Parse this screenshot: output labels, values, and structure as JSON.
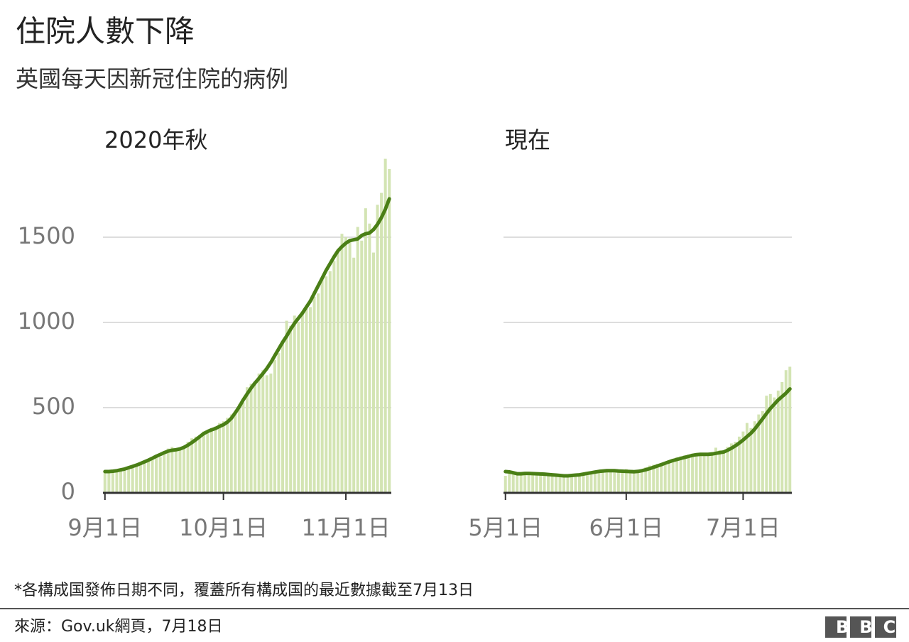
{
  "title": "住院人數下降",
  "subtitle": "英國每天因新冠住院的病例",
  "footnote": "*各構成国發佈日期不同，覆蓋所有構成国的最近數據截至7月13日",
  "source": "來源：Gov.uk網頁，7月18日",
  "logo": "BBC",
  "chart_data": [
    {
      "type": "bar",
      "title": "2020年秋",
      "categories": [
        "9月1日",
        null,
        null,
        null,
        null,
        null,
        null,
        null,
        null,
        null,
        null,
        null,
        null,
        null,
        null,
        null,
        null,
        null,
        null,
        null,
        null,
        null,
        null,
        null,
        null,
        null,
        null,
        null,
        null,
        null,
        "10月1日",
        null,
        null,
        null,
        null,
        null,
        null,
        null,
        null,
        null,
        null,
        null,
        null,
        null,
        null,
        null,
        null,
        null,
        null,
        null,
        null,
        null,
        null,
        null,
        null,
        null,
        null,
        null,
        null,
        null,
        null,
        "11月1日",
        null,
        null,
        null,
        null,
        null,
        null,
        null,
        null,
        null,
        null,
        null
      ],
      "series": [
        {
          "type": "bar",
          "color": "#d3e4b3",
          "values": [
            120,
            118,
            135,
            140,
            128,
            130,
            150,
            160,
            170,
            175,
            185,
            195,
            210,
            220,
            210,
            230,
            260,
            270,
            255,
            250,
            260,
            300,
            320,
            330,
            340,
            360,
            350,
            380,
            390,
            410,
            420,
            440,
            460,
            480,
            520,
            530,
            620,
            640,
            650,
            700,
            720,
            690,
            700,
            780,
            820,
            880,
            1010,
            980,
            1040,
            1000,
            1050,
            1080,
            1090,
            1150,
            1170,
            1250,
            1270,
            1300,
            1360,
            1430,
            1520,
            1500,
            1490,
            1380,
            1560,
            1480,
            1670,
            1580,
            1410,
            1690,
            1760,
            1960,
            1900
          ]
        },
        {
          "type": "line",
          "color": "#4a7f16",
          "values": [
            125,
            125,
            127,
            130,
            135,
            140,
            148,
            155,
            163,
            172,
            182,
            192,
            203,
            215,
            225,
            236,
            245,
            250,
            253,
            258,
            267,
            280,
            295,
            312,
            330,
            348,
            360,
            370,
            378,
            390,
            400,
            415,
            438,
            470,
            505,
            545,
            580,
            615,
            645,
            672,
            700,
            730,
            765,
            805,
            845,
            885,
            920,
            960,
            995,
            1025,
            1055,
            1090,
            1125,
            1170,
            1215,
            1260,
            1305,
            1345,
            1385,
            1420,
            1445,
            1465,
            1480,
            1485,
            1490,
            1510,
            1520,
            1525,
            1545,
            1575,
            1615,
            1665,
            1725
          ]
        }
      ],
      "ylim": [
        0,
        2000
      ],
      "yticks": [
        0,
        500,
        1000,
        1500
      ],
      "grid": true,
      "ytick_labels": true
    },
    {
      "type": "bar",
      "title": "現在",
      "categories": [
        "5月1日",
        null,
        null,
        null,
        null,
        null,
        null,
        null,
        null,
        null,
        null,
        null,
        null,
        null,
        null,
        null,
        null,
        null,
        null,
        null,
        null,
        null,
        null,
        null,
        null,
        null,
        null,
        null,
        null,
        null,
        null,
        "6月1日",
        null,
        null,
        null,
        null,
        null,
        null,
        null,
        null,
        null,
        null,
        null,
        null,
        null,
        null,
        null,
        null,
        null,
        null,
        null,
        null,
        null,
        null,
        null,
        null,
        null,
        null,
        null,
        null,
        null,
        "7月1日",
        null,
        null,
        null,
        null,
        null,
        null,
        null,
        null,
        null,
        null,
        null,
        null
      ],
      "series": [
        {
          "type": "bar",
          "color": "#d3e4b3",
          "values": [
            100,
            130,
            120,
            110,
            115,
            118,
            112,
            110,
            115,
            108,
            112,
            105,
            100,
            98,
            102,
            96,
            95,
            105,
            108,
            110,
            115,
            118,
            120,
            128,
            130,
            125,
            132,
            128,
            130,
            125,
            135,
            140,
            120,
            118,
            125,
            135,
            150,
            160,
            165,
            170,
            175,
            180,
            190,
            200,
            210,
            215,
            220,
            225,
            230,
            218,
            222,
            230,
            232,
            240,
            265,
            250,
            245,
            270,
            290,
            300,
            330,
            360,
            410,
            380,
            420,
            460,
            480,
            570,
            580,
            560,
            600,
            650,
            720,
            740
          ]
        },
        {
          "type": "line",
          "color": "#4a7f16",
          "values": [
            125,
            123,
            118,
            112,
            112,
            114,
            114,
            113,
            112,
            111,
            110,
            108,
            106,
            104,
            102,
            100,
            100,
            102,
            104,
            106,
            110,
            114,
            118,
            122,
            126,
            128,
            130,
            130,
            130,
            128,
            127,
            126,
            125,
            124,
            126,
            130,
            136,
            142,
            150,
            158,
            166,
            174,
            182,
            190,
            196,
            202,
            208,
            214,
            220,
            224,
            226,
            226,
            226,
            228,
            232,
            236,
            240,
            250,
            262,
            276,
            292,
            310,
            330,
            350,
            375,
            405,
            435,
            465,
            495,
            520,
            545,
            565,
            585,
            610
          ]
        }
      ],
      "ylim": [
        0,
        2000
      ],
      "yticks": [
        0,
        500,
        1000,
        1500
      ],
      "grid": true,
      "ytick_labels": false
    }
  ]
}
